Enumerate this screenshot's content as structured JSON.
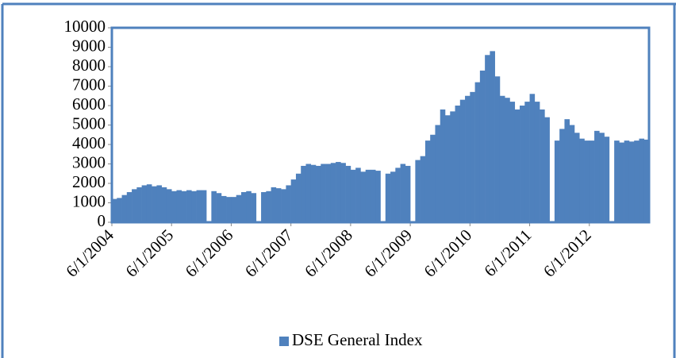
{
  "chart_data": {
    "type": "bar",
    "x": [
      "6/1/2004",
      "7/1/2004",
      "8/1/2004",
      "9/1/2004",
      "10/1/2004",
      "11/1/2004",
      "12/1/2004",
      "1/1/2005",
      "2/1/2005",
      "3/1/2005",
      "4/1/2005",
      "5/1/2005",
      "6/1/2005",
      "7/1/2005",
      "8/1/2005",
      "9/1/2005",
      "10/1/2005",
      "11/1/2005",
      "12/1/2005",
      "1/1/2006",
      "2/1/2006",
      "3/1/2006",
      "4/1/2006",
      "5/1/2006",
      "6/1/2006",
      "7/1/2006",
      "8/1/2006",
      "9/1/2006",
      "10/1/2006",
      "11/1/2006",
      "12/1/2006",
      "1/1/2007",
      "2/1/2007",
      "3/1/2007",
      "4/1/2007",
      "5/1/2007",
      "6/1/2007",
      "7/1/2007",
      "8/1/2007",
      "9/1/2007",
      "10/1/2007",
      "11/1/2007",
      "12/1/2007",
      "1/1/2008",
      "2/1/2008",
      "3/1/2008",
      "4/1/2008",
      "5/1/2008",
      "6/1/2008",
      "7/1/2008",
      "8/1/2008",
      "9/1/2008",
      "10/1/2008",
      "11/1/2008",
      "12/1/2008",
      "1/1/2009",
      "2/1/2009",
      "3/1/2009",
      "4/1/2009",
      "5/1/2009",
      "6/1/2009",
      "7/1/2009",
      "8/1/2009",
      "9/1/2009",
      "10/1/2009",
      "11/1/2009",
      "12/1/2009",
      "1/1/2010",
      "2/1/2010",
      "3/1/2010",
      "4/1/2010",
      "5/1/2010",
      "6/1/2010",
      "7/1/2010",
      "8/1/2010",
      "9/1/2010",
      "10/1/2010",
      "11/1/2010",
      "12/1/2010",
      "1/1/2011",
      "2/1/2011",
      "3/1/2011",
      "4/1/2011",
      "5/1/2011",
      "6/1/2011",
      "7/1/2011",
      "8/1/2011",
      "9/1/2011",
      "10/1/2011",
      "11/1/2011",
      "12/1/2011",
      "1/1/2012",
      "2/1/2012",
      "3/1/2012",
      "4/1/2012",
      "5/1/2012",
      "6/1/2012",
      "7/1/2012",
      "8/1/2012",
      "9/1/2012",
      "10/1/2012",
      "11/1/2012",
      "12/1/2012",
      "1/1/2013",
      "2/1/2013",
      "3/1/2013",
      "4/1/2013",
      "5/1/2013"
    ],
    "series": [
      {
        "name": "DSE General Index",
        "color": "#4f81bd",
        "values": [
          1200,
          1250,
          1400,
          1550,
          1700,
          1800,
          1900,
          1950,
          1850,
          1900,
          1800,
          1700,
          1600,
          1650,
          1600,
          1650,
          1600,
          1650,
          1650,
          null,
          1600,
          1500,
          1350,
          1300,
          1300,
          1400,
          1550,
          1600,
          1500,
          null,
          1550,
          1600,
          1800,
          1750,
          1700,
          1900,
          2200,
          2500,
          2900,
          3000,
          2950,
          2900,
          3000,
          3000,
          3050,
          3100,
          3050,
          2900,
          2700,
          2800,
          2600,
          2700,
          2700,
          2650,
          null,
          2500,
          2600,
          2800,
          3000,
          2900,
          null,
          3200,
          3400,
          4200,
          4500,
          5000,
          5800,
          5500,
          5700,
          6000,
          6300,
          6500,
          6700,
          7200,
          7800,
          8600,
          8800,
          7500,
          6500,
          6400,
          6200,
          5800,
          6000,
          6200,
          6600,
          6200,
          5800,
          5400,
          null,
          4200,
          4800,
          5300,
          5000,
          4600,
          4300,
          4200,
          4200,
          4700,
          4600,
          4400,
          null,
          4200,
          4100,
          4200,
          4150,
          4200,
          4300,
          4250
        ]
      }
    ],
    "xlim": [
      "6/1/2004",
      "6/1/2013"
    ],
    "xticks": [
      "6/1/2004",
      "6/1/2005",
      "6/1/2006",
      "6/1/2007",
      "6/1/2008",
      "6/1/2009",
      "6/1/2010",
      "6/1/2011",
      "6/1/2012"
    ],
    "ylim": [
      0,
      10000
    ],
    "yticks": [
      0,
      1000,
      2000,
      3000,
      4000,
      5000,
      6000,
      7000,
      8000,
      9000,
      10000
    ],
    "legend": "bottom"
  }
}
